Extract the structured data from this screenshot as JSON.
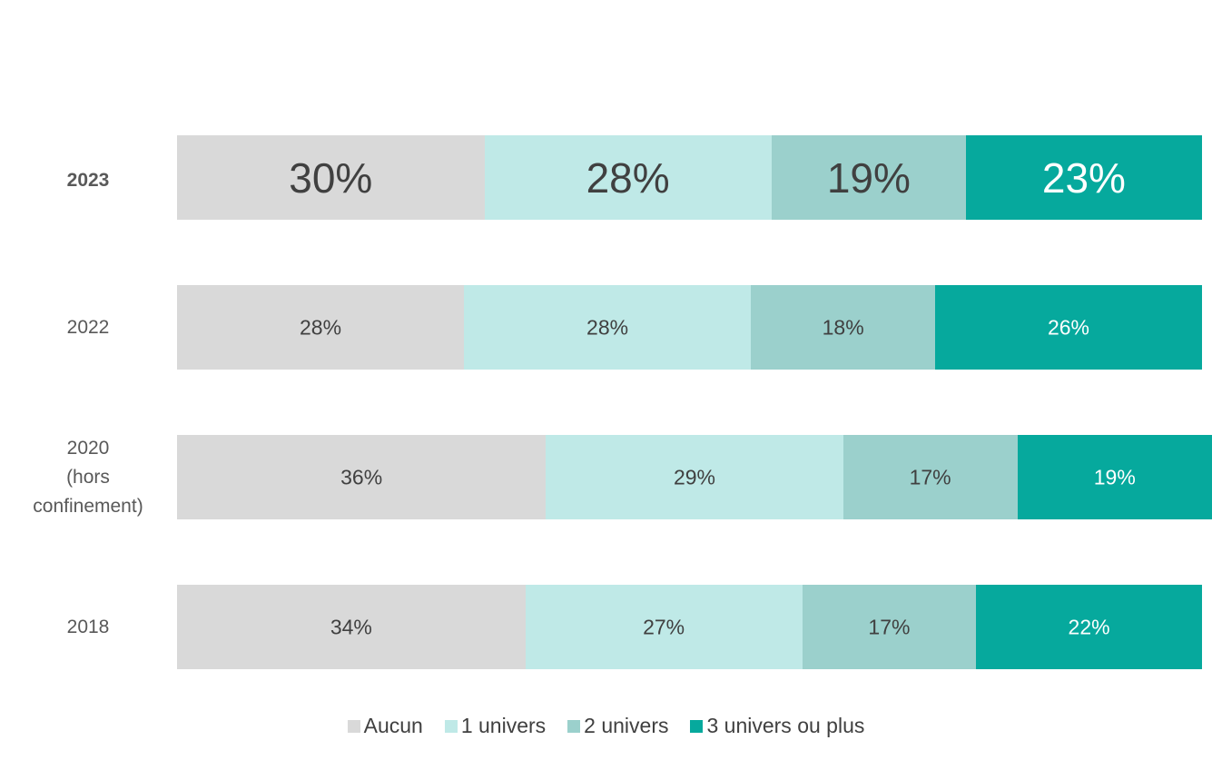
{
  "chart_data": {
    "type": "stacked-bar-horizontal",
    "categories": [
      "2023",
      "2022",
      "2020\n(hors\nconfinement)",
      "2018"
    ],
    "highlight": 0,
    "xlim": [
      0,
      101
    ],
    "series": [
      {
        "name": "Aucun",
        "color": "#d9d9d9",
        "label_color": "#404040",
        "values": [
          30,
          28,
          36,
          34
        ],
        "value_labels": [
          "30%",
          "28%",
          "36%",
          "34%"
        ]
      },
      {
        "name": "1 univers",
        "color": "#bfe9e7",
        "label_color": "#404040",
        "values": [
          28,
          28,
          29,
          27
        ],
        "value_labels": [
          "28%",
          "28%",
          "29%",
          "27%"
        ]
      },
      {
        "name": "2 univers",
        "color": "#9bd0cc",
        "label_color": "#404040",
        "values": [
          19,
          18,
          17,
          17
        ],
        "value_labels": [
          "19%",
          "18%",
          "17%",
          "17%"
        ]
      },
      {
        "name": "3 univers ou plus",
        "color": "#06a99d",
        "label_color": "#ffffff",
        "values": [
          23,
          26,
          19,
          22
        ],
        "value_labels": [
          "23%",
          "26%",
          "19%",
          "22%"
        ]
      }
    ]
  }
}
